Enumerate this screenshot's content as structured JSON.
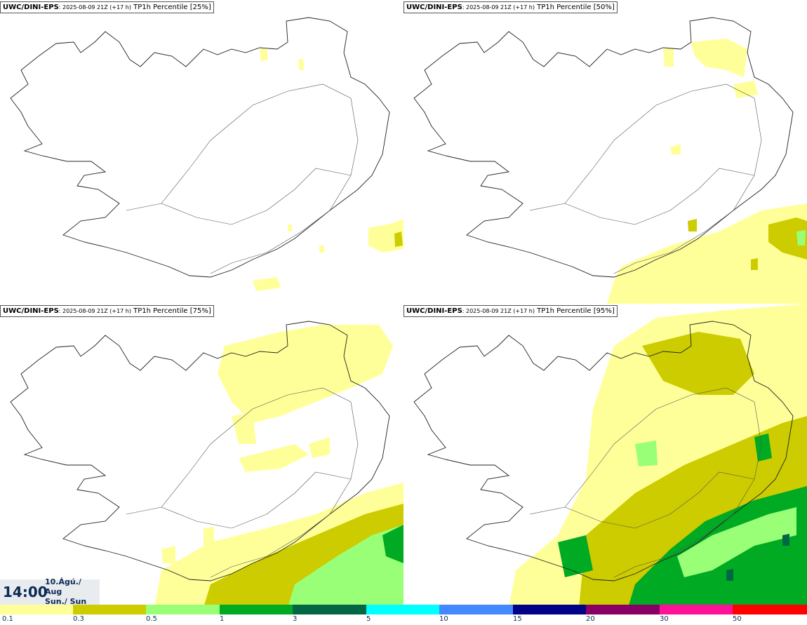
{
  "panels": [
    {
      "source": "UWC/DINI-EPS",
      "run": ": 2025-08-09 21Z (+17 h)",
      "title": " TP1h Percentile [25%]"
    },
    {
      "source": "UWC/DINI-EPS",
      "run": ": 2025-08-09 21Z (+17 h)",
      "title": " TP1h Percentile [50%]"
    },
    {
      "source": "UWC/DINI-EPS",
      "run": ": 2025-08-09 21Z (+17 h)",
      "title": " TP1h Percentile [75%]"
    },
    {
      "source": "UWC/DINI-EPS",
      "run": ": 2025-08-09 21Z (+17 h)",
      "title": " TP1h Percentile [95%]"
    }
  ],
  "time": {
    "clock": "14:00",
    "date": "10.Ágú./ Aug",
    "day": "Sun./ Sun"
  },
  "legend": {
    "ticks": [
      "0.1",
      "0.3",
      "0.5",
      "1",
      "3",
      "5",
      "10",
      "15",
      "20",
      "30",
      "50"
    ],
    "colors": [
      "#ffff99",
      "#cccc00",
      "#99ff77",
      "#00aa22",
      "#006644",
      "#00ffff",
      "#4488ff",
      "#000088",
      "#880066",
      "#ff1199",
      "#ff0000"
    ]
  },
  "colors": {
    "light": "#ffff99",
    "olive": "#cccc00",
    "lightgreen": "#99ff77",
    "green": "#00aa22",
    "darkgreen": "#006644",
    "coast": "#222222"
  }
}
